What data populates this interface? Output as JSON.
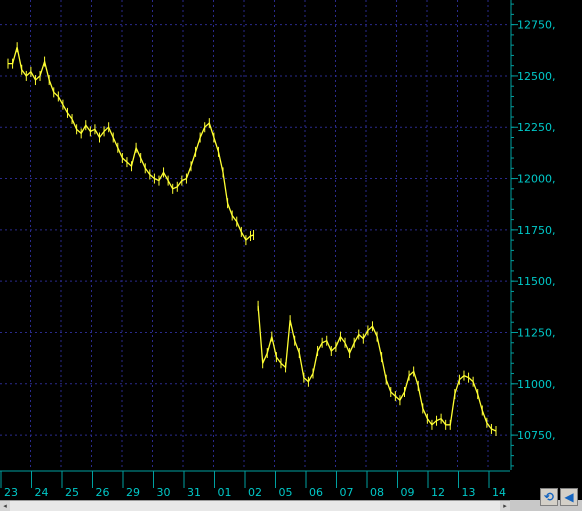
{
  "chart_data": {
    "type": "line",
    "style": "hlc-bars",
    "background": "#000000",
    "line_color": "#ffff33",
    "grid": true,
    "grid_color": "#2a2a8c",
    "axis_color": "#00a0a0",
    "tick_label_color": "#00c8c8",
    "ylim": [
      10580,
      12870
    ],
    "ylabel_position": "right",
    "y_ticks": [
      {
        "value": 12750,
        "label": "12750,"
      },
      {
        "value": 12500,
        "label": "12500,"
      },
      {
        "value": 12250,
        "label": "12250,"
      },
      {
        "value": 12000,
        "label": "12000,"
      },
      {
        "value": 11750,
        "label": "11750,"
      },
      {
        "value": 11500,
        "label": "11500,"
      },
      {
        "value": 11250,
        "label": "11250,"
      },
      {
        "value": 11000,
        "label": "11000,"
      },
      {
        "value": 10750,
        "label": "10750,"
      }
    ],
    "x_categories": [
      "23",
      "24",
      "25",
      "26",
      "29",
      "30",
      "31",
      "01",
      "02",
      "05",
      "06",
      "07",
      "08",
      "09",
      "12",
      "13",
      "14"
    ],
    "series": [
      {
        "segments": [
          [
            [
              0.0,
              12560
            ],
            [
              0.15,
              12560
            ],
            [
              0.3,
              12640
            ],
            [
              0.45,
              12530
            ],
            [
              0.6,
              12500
            ],
            [
              0.75,
              12520
            ],
            [
              0.9,
              12480
            ],
            [
              1.05,
              12500
            ],
            [
              1.2,
              12570
            ],
            [
              1.35,
              12480
            ],
            [
              1.5,
              12420
            ],
            [
              1.65,
              12400
            ],
            [
              1.8,
              12360
            ],
            [
              1.95,
              12320
            ],
            [
              2.1,
              12290
            ],
            [
              2.25,
              12240
            ],
            [
              2.4,
              12220
            ],
            [
              2.55,
              12260
            ],
            [
              2.7,
              12230
            ],
            [
              2.85,
              12240
            ],
            [
              3.0,
              12200
            ],
            [
              3.15,
              12230
            ],
            [
              3.3,
              12250
            ],
            [
              3.45,
              12200
            ],
            [
              3.6,
              12150
            ],
            [
              3.75,
              12100
            ],
            [
              3.9,
              12080
            ],
            [
              4.05,
              12060
            ],
            [
              4.2,
              12150
            ],
            [
              4.35,
              12100
            ],
            [
              4.5,
              12050
            ],
            [
              4.65,
              12020
            ],
            [
              4.8,
              12000
            ],
            [
              4.95,
              11990
            ],
            [
              5.1,
              12030
            ],
            [
              5.25,
              11990
            ],
            [
              5.4,
              11950
            ],
            [
              5.55,
              11960
            ],
            [
              5.7,
              11990
            ],
            [
              5.85,
              12000
            ],
            [
              6.0,
              12060
            ],
            [
              6.15,
              12130
            ],
            [
              6.3,
              12200
            ],
            [
              6.45,
              12250
            ],
            [
              6.6,
              12270
            ],
            [
              6.75,
              12200
            ],
            [
              6.9,
              12130
            ],
            [
              7.05,
              12030
            ],
            [
              7.2,
              11880
            ],
            [
              7.35,
              11820
            ],
            [
              7.5,
              11790
            ],
            [
              7.65,
              11740
            ],
            [
              7.8,
              11700
            ],
            [
              7.95,
              11720
            ],
            [
              8.05,
              11725
            ]
          ],
          [
            [
              8.2,
              11380
            ],
            [
              8.35,
              11100
            ],
            [
              8.5,
              11150
            ],
            [
              8.65,
              11230
            ],
            [
              8.8,
              11130
            ],
            [
              8.95,
              11100
            ],
            [
              9.1,
              11080
            ],
            [
              9.25,
              11310
            ],
            [
              9.4,
              11210
            ],
            [
              9.55,
              11150
            ],
            [
              9.7,
              11030
            ],
            [
              9.85,
              11010
            ],
            [
              10.0,
              11050
            ],
            [
              10.15,
              11160
            ],
            [
              10.3,
              11200
            ],
            [
              10.45,
              11210
            ],
            [
              10.6,
              11160
            ],
            [
              10.75,
              11180
            ],
            [
              10.9,
              11230
            ],
            [
              11.05,
              11200
            ],
            [
              11.2,
              11150
            ],
            [
              11.35,
              11200
            ],
            [
              11.5,
              11240
            ],
            [
              11.65,
              11220
            ],
            [
              11.8,
              11260
            ],
            [
              11.95,
              11280
            ],
            [
              12.1,
              11230
            ],
            [
              12.25,
              11130
            ],
            [
              12.4,
              11020
            ],
            [
              12.55,
              10960
            ],
            [
              12.7,
              10940
            ],
            [
              12.85,
              10920
            ],
            [
              13.0,
              10960
            ],
            [
              13.15,
              11040
            ],
            [
              13.3,
              11060
            ],
            [
              13.45,
              10990
            ],
            [
              13.6,
              10880
            ],
            [
              13.75,
              10830
            ],
            [
              13.9,
              10800
            ],
            [
              14.05,
              10820
            ],
            [
              14.2,
              10830
            ],
            [
              14.35,
              10800
            ],
            [
              14.5,
              10800
            ],
            [
              14.65,
              10950
            ],
            [
              14.8,
              11020
            ],
            [
              14.95,
              11040
            ],
            [
              15.1,
              11030
            ],
            [
              15.25,
              11010
            ],
            [
              15.4,
              10950
            ],
            [
              15.55,
              10870
            ],
            [
              15.7,
              10810
            ],
            [
              15.85,
              10780
            ],
            [
              16.0,
              10770
            ]
          ]
        ]
      }
    ]
  },
  "icons": {
    "refresh": "⟲",
    "nav_left": "◀",
    "scroll_left": "◂",
    "scroll_right": "▸"
  }
}
